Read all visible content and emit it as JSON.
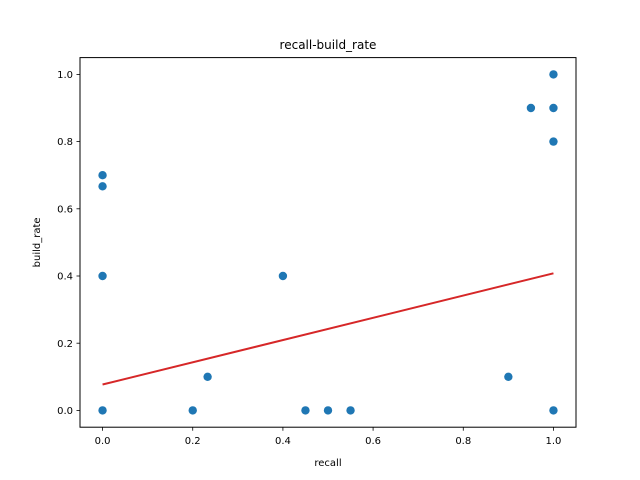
{
  "chart_data": {
    "type": "scatter",
    "title": "recall-build_rate",
    "xlabel": "recall",
    "ylabel": "build_rate",
    "xlim": [
      -0.05,
      1.05
    ],
    "ylim": [
      -0.05,
      1.05
    ],
    "xticks": [
      0.0,
      0.2,
      0.4,
      0.6,
      0.8,
      1.0
    ],
    "xtick_labels": [
      "0.0",
      "0.2",
      "0.4",
      "0.6",
      "0.8",
      "1.0"
    ],
    "yticks": [
      0.0,
      0.2,
      0.4,
      0.6,
      0.8,
      1.0
    ],
    "ytick_labels": [
      "0.0",
      "0.2",
      "0.4",
      "0.6",
      "0.8",
      "1.0"
    ],
    "grid": false,
    "series": [
      {
        "type": "scatter",
        "color": "#1f77b4",
        "points": [
          [
            0.0,
            0.0
          ],
          [
            0.0,
            0.7
          ],
          [
            0.0,
            0.667
          ],
          [
            0.0,
            0.4
          ],
          [
            0.2,
            0.0
          ],
          [
            0.233,
            0.1
          ],
          [
            0.4,
            0.4
          ],
          [
            0.45,
            0.0
          ],
          [
            0.5,
            0.0
          ],
          [
            0.55,
            0.0
          ],
          [
            0.9,
            0.1
          ],
          [
            0.95,
            0.9
          ],
          [
            1.0,
            1.0
          ],
          [
            1.0,
            0.9
          ],
          [
            1.0,
            0.8
          ],
          [
            1.0,
            0.0
          ]
        ]
      },
      {
        "type": "line",
        "color": "#d62728",
        "x": [
          0.0,
          1.0
        ],
        "y": [
          0.077,
          0.408
        ]
      }
    ]
  }
}
